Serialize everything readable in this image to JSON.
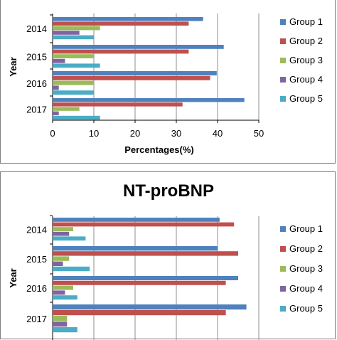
{
  "chart_data": [
    {
      "type": "bar",
      "orientation": "horizontal",
      "title": "",
      "xlabel": "Percentages(%)",
      "ylabel": "Year",
      "xlim": [
        0,
        50
      ],
      "xticks": [
        "0",
        "10",
        "20",
        "30",
        "40",
        "50"
      ],
      "categories": [
        "2014",
        "2015",
        "2016",
        "2017"
      ],
      "grid": true,
      "legend_position": "right",
      "series": [
        {
          "name": "Group 1",
          "color": "#4f81bd",
          "values": [
            36.5,
            41.5,
            39.8,
            46.5
          ]
        },
        {
          "name": "Group 2",
          "color": "#c0504d",
          "values": [
            33.0,
            33.0,
            38.2,
            31.5
          ]
        },
        {
          "name": "Group 3",
          "color": "#9bbb59",
          "values": [
            11.5,
            10.0,
            10.0,
            6.5
          ]
        },
        {
          "name": "Group 4",
          "color": "#8064a2",
          "values": [
            6.5,
            3.0,
            1.5,
            1.5
          ]
        },
        {
          "name": "Group 5",
          "color": "#4bacc6",
          "values": [
            10.0,
            11.5,
            10.0,
            11.5
          ]
        }
      ]
    },
    {
      "type": "bar",
      "orientation": "horizontal",
      "title": "NT-proBNP",
      "xlabel": "",
      "ylabel": "Year",
      "xlim": [
        0,
        50
      ],
      "categories": [
        "2014",
        "2015",
        "2016",
        "2017"
      ],
      "grid": true,
      "legend_position": "right",
      "series": [
        {
          "name": "Group 1",
          "color": "#4f81bd",
          "values": [
            40.5,
            40.0,
            45.0,
            47.0
          ]
        },
        {
          "name": "Group 2",
          "color": "#c0504d",
          "values": [
            44.0,
            45.0,
            42.0,
            42.0
          ]
        },
        {
          "name": "Group 3",
          "color": "#9bbb59",
          "values": [
            5.0,
            4.0,
            5.0,
            3.5
          ]
        },
        {
          "name": "Group 4",
          "color": "#8064a2",
          "values": [
            4.0,
            2.5,
            3.0,
            3.5
          ]
        },
        {
          "name": "Group 5",
          "color": "#4bacc6",
          "values": [
            8.0,
            9.0,
            6.0,
            6.0
          ]
        }
      ]
    }
  ]
}
